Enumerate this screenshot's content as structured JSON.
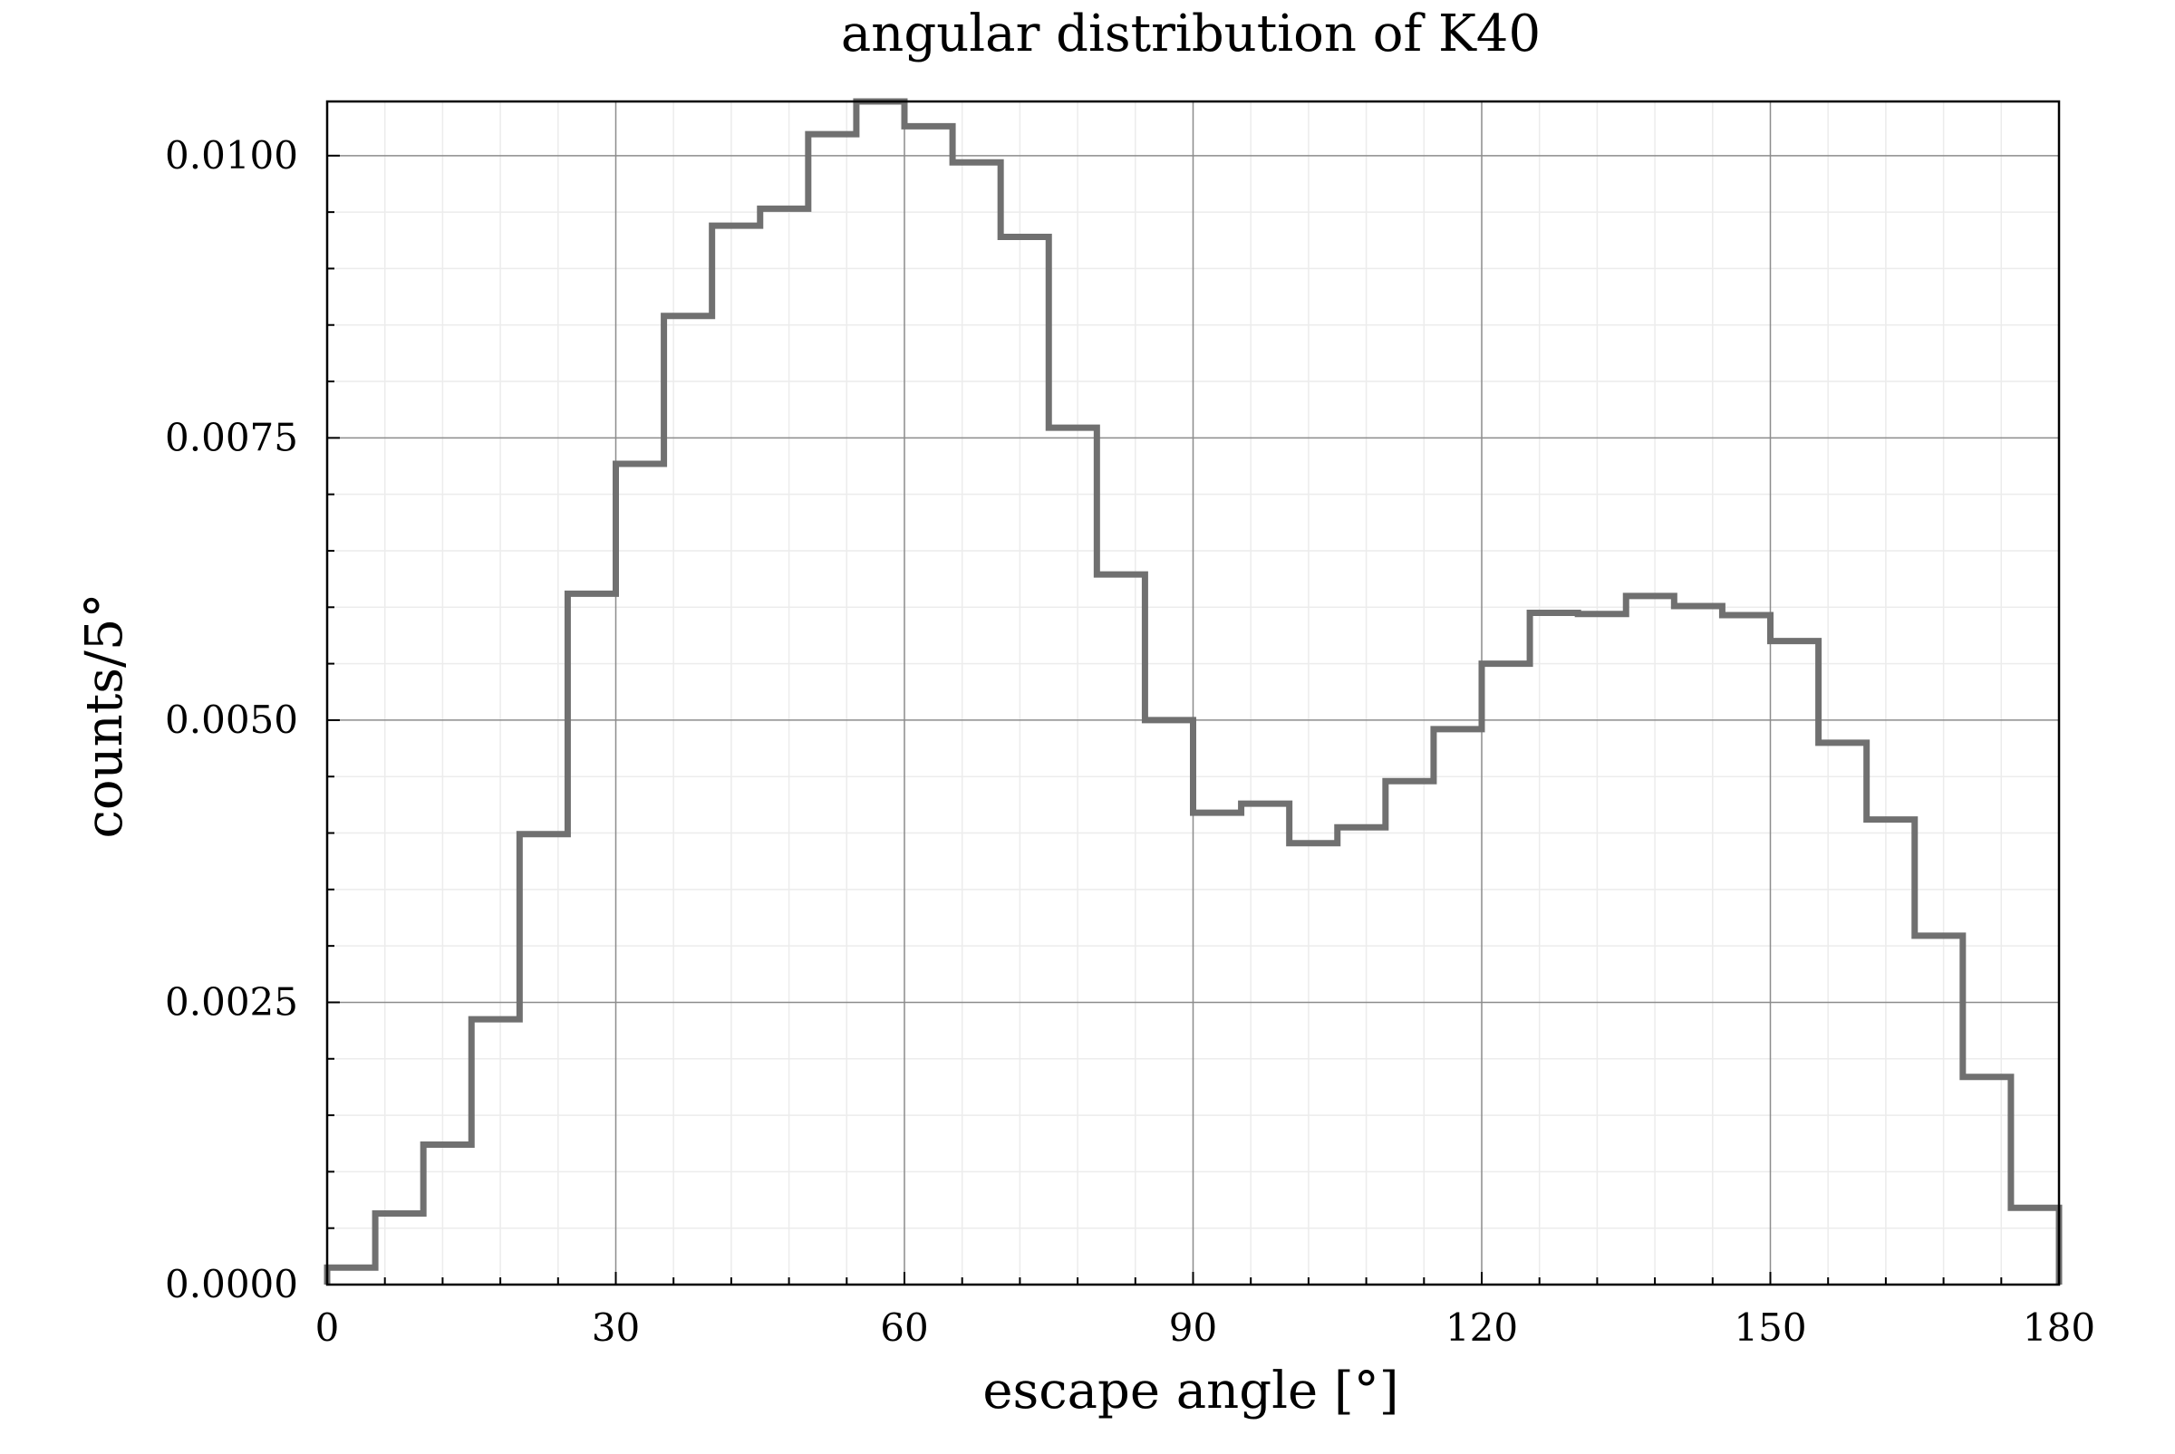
{
  "chart_data": {
    "type": "histogram",
    "title": "angular distribution of K40",
    "xlabel": "escape angle [°]",
    "ylabel": "counts/5°",
    "xlim": [
      0,
      180
    ],
    "ylim": [
      0,
      0.01048
    ],
    "bin_width": 5,
    "x_ticks": [
      0,
      30,
      60,
      90,
      120,
      150,
      180
    ],
    "x_tick_labels": [
      "0",
      "30",
      "60",
      "90",
      "120",
      "150",
      "180"
    ],
    "y_ticks": [
      0,
      0.0025,
      0.005,
      0.0075,
      0.01
    ],
    "y_tick_labels": [
      "0.0000",
      "0.0025",
      "0.0050",
      "0.0075",
      "0.0100"
    ],
    "grid": true,
    "minor_grid": true,
    "legend": "none",
    "series": [
      {
        "bin_edges": [
          0,
          5,
          10,
          15,
          20,
          25,
          30,
          35,
          40,
          45,
          50,
          55,
          60,
          65,
          70,
          75,
          80,
          85,
          90,
          95,
          100,
          105,
          110,
          115,
          120,
          125,
          130,
          135,
          140,
          145,
          150,
          155,
          160,
          165,
          170,
          175,
          180
        ],
        "values": [
          0.00015,
          0.00063,
          0.00124,
          0.00235,
          0.00399,
          0.00612,
          0.00727,
          0.00858,
          0.00938,
          0.00953,
          0.01019,
          0.01048,
          0.01026,
          0.00994,
          0.00928,
          0.00759,
          0.00629,
          0.005,
          0.00418,
          0.00426,
          0.00391,
          0.00405,
          0.00446,
          0.00492,
          0.0055,
          0.00595,
          0.00594,
          0.0061,
          0.00601,
          0.00593,
          0.0057,
          0.0048,
          0.00412,
          0.00309,
          0.00184,
          0.00068
        ]
      }
    ],
    "colors": {
      "series_line": "#707070",
      "major_grid": "#8c8c8c",
      "minor_grid": "#ececec",
      "axes": "#000000"
    }
  }
}
